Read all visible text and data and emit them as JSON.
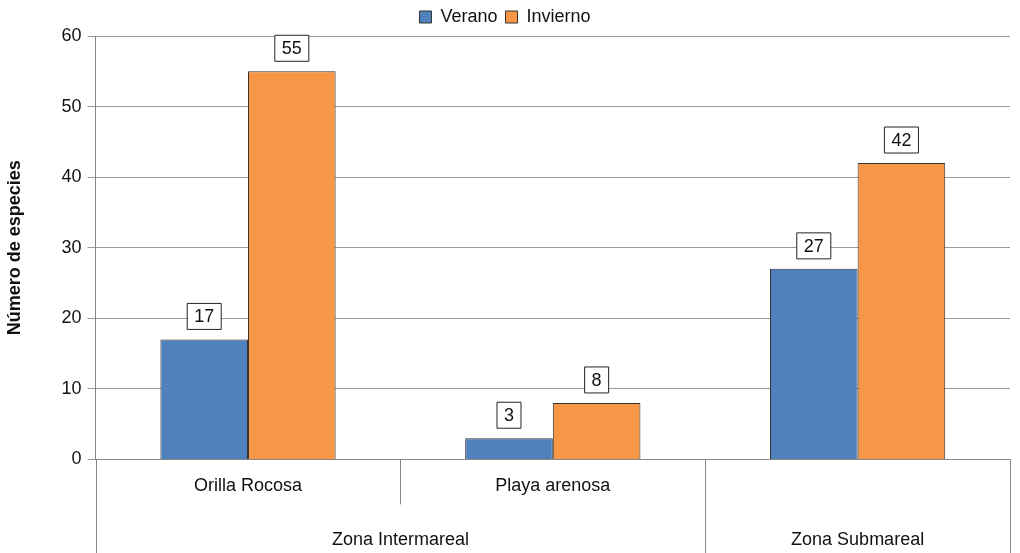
{
  "chart_data": {
    "type": "bar",
    "ylabel": "Número de especies",
    "categories": [
      "Orilla Rocosa",
      "Playa arenosa",
      null
    ],
    "series": [
      {
        "name": "Verano",
        "color": "#4f81bd",
        "values": [
          17,
          3,
          27
        ]
      },
      {
        "name": "Invierno",
        "color": "#f79646",
        "values": [
          55,
          8,
          42
        ]
      }
    ],
    "ylim": [
      0,
      60
    ],
    "yticks": [
      0,
      10,
      20,
      30,
      40,
      50,
      60
    ],
    "grid": "y",
    "legend": "top",
    "data_labels": true,
    "annotations": [
      "Zona Intermareal",
      "Zona Submareal"
    ]
  }
}
